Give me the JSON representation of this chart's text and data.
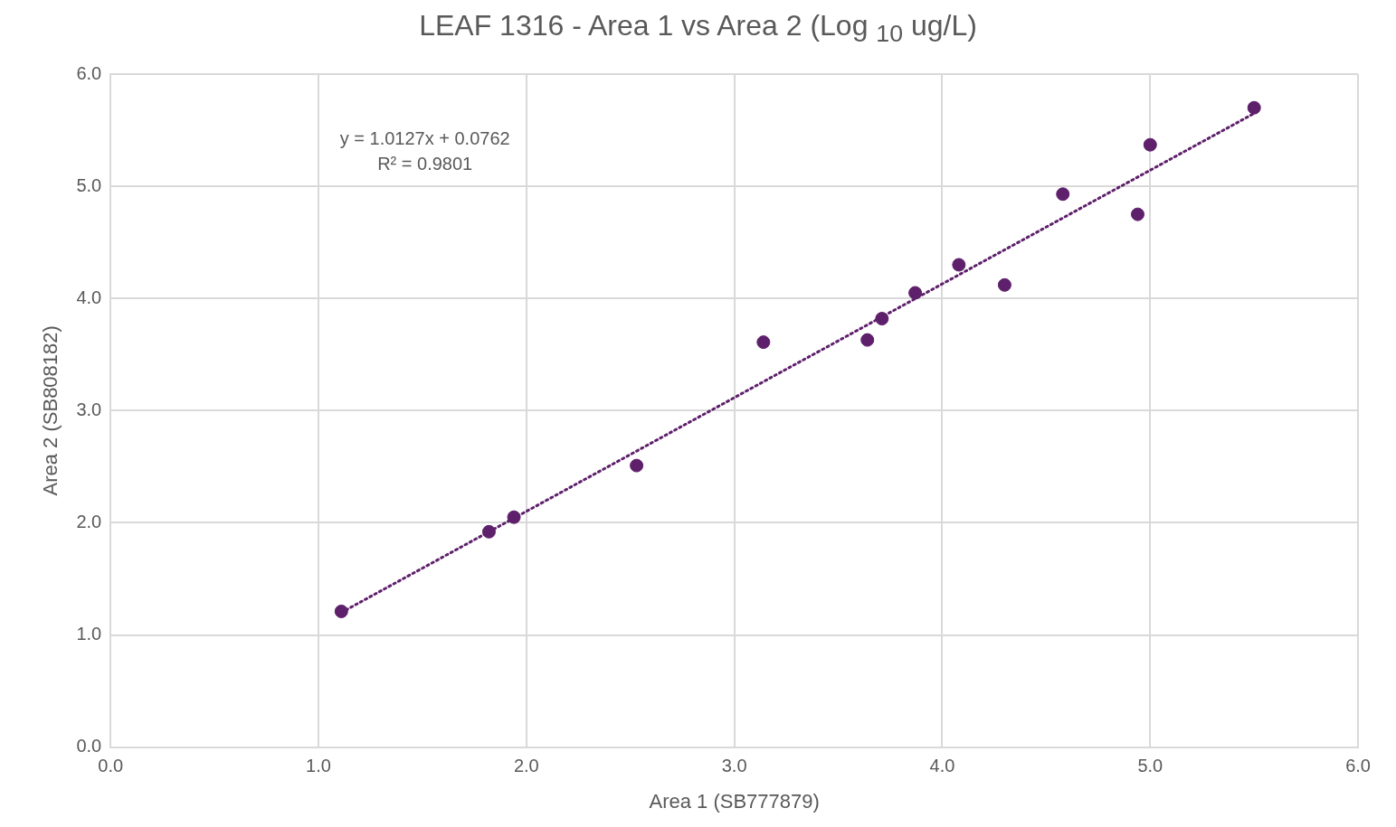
{
  "chart_data": {
    "type": "scatter",
    "title": "LEAF 1316 - Area 1 vs Area 2 (Log $_{10}$ ug/L)",
    "xlabel": "Area 1 (SB777879)",
    "ylabel": "Area 2 (SB808182)",
    "annotations": [
      "y = 1.0127x + 0.0762",
      "R² = 0.9801"
    ],
    "series": [
      {
        "color": "#5e1f6b",
        "x": [
          1.11,
          1.82,
          1.94,
          2.53,
          3.14,
          3.64,
          3.71,
          3.87,
          4.08,
          4.3,
          4.58,
          4.94,
          5.0,
          5.5
        ],
        "values": [
          1.21,
          1.92,
          2.05,
          2.51,
          3.61,
          3.63,
          3.82,
          4.05,
          4.3,
          4.12,
          4.93,
          4.75,
          5.37,
          5.7
        ]
      },
      {
        "type": "line",
        "color": "#5e1f6b",
        "line_style": "dotted",
        "marker": "none",
        "x": [
          1.11,
          5.5
        ],
        "values": [
          1.2,
          5.65
        ]
      }
    ],
    "xlim": [
      0,
      6
    ],
    "ylim": [
      0,
      6
    ],
    "xticks": [
      {
        "value": 0,
        "label": "0.0"
      },
      {
        "value": 1,
        "label": "1.0"
      },
      {
        "value": 2,
        "label": "2.0"
      },
      {
        "value": 3,
        "label": "3.0"
      },
      {
        "value": 4,
        "label": "4.0"
      },
      {
        "value": 5,
        "label": "5.0"
      },
      {
        "value": 6,
        "label": "6.0"
      }
    ],
    "yticks": [
      {
        "value": 0,
        "label": "0.0"
      },
      {
        "value": 1,
        "label": "1.0"
      },
      {
        "value": 2,
        "label": "2.0"
      },
      {
        "value": 3,
        "label": "3.0"
      },
      {
        "value": 4,
        "label": "4.0"
      },
      {
        "value": 5,
        "label": "5.0"
      },
      {
        "value": 6,
        "label": "6.0"
      }
    ],
    "grid": true,
    "legend": false,
    "marker": "circle"
  }
}
